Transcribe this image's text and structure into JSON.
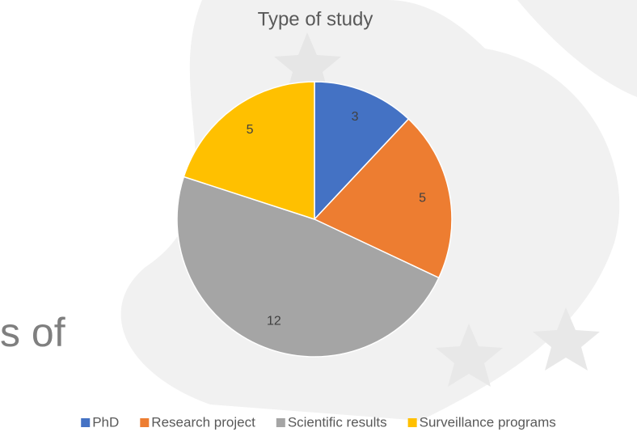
{
  "background_text": "s of",
  "chart_data": {
    "type": "pie",
    "title": "Type of study",
    "categories": [
      "PhD",
      "Research project",
      "Scientific results",
      "Surveillance programs"
    ],
    "values": [
      3,
      5,
      12,
      5
    ],
    "colors": [
      "#4472c4",
      "#ed7d31",
      "#a5a5a5",
      "#ffc000"
    ],
    "legend": "bottom"
  }
}
